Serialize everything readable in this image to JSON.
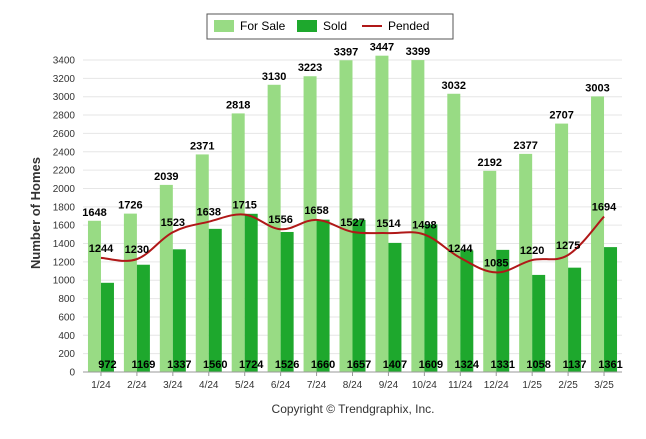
{
  "chart_data": {
    "type": "bar",
    "categories": [
      "1/24",
      "2/24",
      "3/24",
      "4/24",
      "5/24",
      "6/24",
      "7/24",
      "8/24",
      "9/24",
      "10/24",
      "11/24",
      "12/24",
      "1/25",
      "2/25",
      "3/25"
    ],
    "series": [
      {
        "name": "For Sale",
        "kind": "bar",
        "color": "#98DB84",
        "values": [
          1648,
          1726,
          2039,
          2371,
          2818,
          3130,
          3223,
          3397,
          3447,
          3399,
          3032,
          2192,
          2377,
          2707,
          3003
        ]
      },
      {
        "name": "Sold",
        "kind": "bar",
        "color": "#1EA82D",
        "values": [
          972,
          1169,
          1337,
          1560,
          1724,
          1526,
          1660,
          1657,
          1407,
          1609,
          1324,
          1331,
          1058,
          1137,
          1361
        ]
      },
      {
        "name": "Pended",
        "kind": "line",
        "color": "#B01818",
        "values": [
          1244,
          1230,
          1523,
          1638,
          1715,
          1556,
          1658,
          1527,
          1514,
          1498,
          1244,
          1085,
          1220,
          1275,
          1694
        ]
      }
    ],
    "ylabel": "Number of Homes",
    "xlabel": "",
    "ylim": [
      0,
      3400
    ],
    "ytick_step": 200,
    "grid": true,
    "legend_placement": "top-center"
  },
  "footer": {
    "credit": "Copyright © Trendgraphix, Inc."
  }
}
